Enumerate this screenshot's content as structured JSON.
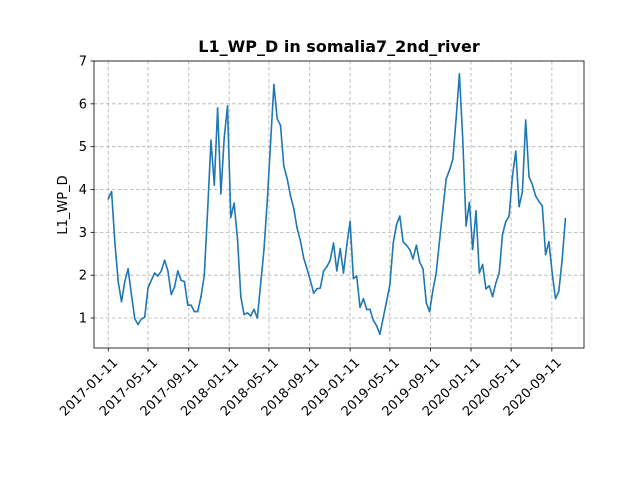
{
  "chart_data": {
    "type": "line",
    "title": "L1_WP_D in somalia7_2nd_river",
    "xlabel": "",
    "ylabel": "L1_WP_D",
    "ylim": [
      0.3,
      7.0
    ],
    "yticks": [
      1,
      2,
      3,
      4,
      5,
      6,
      7
    ],
    "xticks": [
      "2017-01-11",
      "2017-05-11",
      "2017-09-11",
      "2018-01-11",
      "2018-05-11",
      "2018-09-11",
      "2019-01-11",
      "2019-05-11",
      "2019-09-11",
      "2020-01-11",
      "2020-05-11",
      "2020-09-11"
    ],
    "xlim": [
      "2016-11-29",
      "2020-12-17"
    ],
    "grid": true,
    "color": "#1f77b4",
    "series": [
      {
        "x": [
          "2017-01-11",
          "2017-01-21",
          "2017-01-31",
          "2017-02-10",
          "2017-02-20",
          "2017-03-02",
          "2017-03-12",
          "2017-03-22",
          "2017-04-01",
          "2017-04-11",
          "2017-04-21",
          "2017-05-01",
          "2017-05-11",
          "2017-05-21",
          "2017-05-31",
          "2017-06-10",
          "2017-06-20",
          "2017-06-30",
          "2017-07-10",
          "2017-07-20",
          "2017-07-30",
          "2017-08-09",
          "2017-08-19",
          "2017-08-29",
          "2017-09-08",
          "2017-09-18",
          "2017-09-28",
          "2017-10-08",
          "2017-10-18",
          "2017-10-28",
          "2017-11-07",
          "2017-11-17",
          "2017-11-27",
          "2017-12-07",
          "2017-12-17",
          "2017-12-27",
          "2018-01-06",
          "2018-01-16",
          "2018-01-26",
          "2018-02-05",
          "2018-02-15",
          "2018-02-25",
          "2018-03-07",
          "2018-03-17",
          "2018-03-27",
          "2018-04-06",
          "2018-04-16",
          "2018-04-26",
          "2018-05-06",
          "2018-05-16",
          "2018-05-26",
          "2018-06-05",
          "2018-06-15",
          "2018-06-25",
          "2018-07-05",
          "2018-07-15",
          "2018-07-25",
          "2018-08-04",
          "2018-08-14",
          "2018-08-24",
          "2018-09-03",
          "2018-09-13",
          "2018-09-23",
          "2018-10-03",
          "2018-10-13",
          "2018-10-23",
          "2018-11-02",
          "2018-11-12",
          "2018-11-22",
          "2018-12-02",
          "2018-12-12",
          "2018-12-22",
          "2019-01-01",
          "2019-01-11",
          "2019-01-21",
          "2019-01-31",
          "2019-02-10",
          "2019-02-20",
          "2019-03-02",
          "2019-03-12",
          "2019-03-22",
          "2019-04-01",
          "2019-04-11",
          "2019-04-21",
          "2019-05-01",
          "2019-05-11",
          "2019-05-21",
          "2019-05-31",
          "2019-06-10",
          "2019-06-20",
          "2019-06-30",
          "2019-07-10",
          "2019-07-20",
          "2019-07-30",
          "2019-08-09",
          "2019-08-19",
          "2019-08-29",
          "2019-09-08",
          "2019-09-18",
          "2019-09-28",
          "2019-10-08",
          "2019-10-18",
          "2019-10-28",
          "2019-11-07",
          "2019-11-17",
          "2019-11-27",
          "2019-12-07",
          "2019-12-17",
          "2019-12-27",
          "2020-01-06",
          "2020-01-16",
          "2020-01-26",
          "2020-02-05",
          "2020-02-15",
          "2020-02-25",
          "2020-03-06",
          "2020-03-16",
          "2020-03-26",
          "2020-04-05",
          "2020-04-15",
          "2020-04-25",
          "2020-05-05",
          "2020-05-15",
          "2020-05-25",
          "2020-06-04",
          "2020-06-14",
          "2020-06-24",
          "2020-07-04",
          "2020-07-14",
          "2020-07-24",
          "2020-08-03",
          "2020-08-13",
          "2020-08-23",
          "2020-09-02",
          "2020-09-12",
          "2020-09-22",
          "2020-10-02",
          "2020-10-12",
          "2020-10-22"
        ],
        "values": [
          3.78,
          3.95,
          2.75,
          1.85,
          1.38,
          1.85,
          2.15,
          1.55,
          0.98,
          0.85,
          0.98,
          1.02,
          1.7,
          1.88,
          2.05,
          1.98,
          2.1,
          2.35,
          2.1,
          1.55,
          1.72,
          2.1,
          1.88,
          1.85,
          1.3,
          1.3,
          1.15,
          1.15,
          1.5,
          2.0,
          3.5,
          5.15,
          4.1,
          5.9,
          3.9,
          5.2,
          5.95,
          3.35,
          3.68,
          2.85,
          1.5,
          1.08,
          1.12,
          1.05,
          1.2,
          1.0,
          1.78,
          2.6,
          3.75,
          5.1,
          6.45,
          5.65,
          5.5,
          4.55,
          4.25,
          3.85,
          3.55,
          3.1,
          2.8,
          2.4,
          2.15,
          1.88,
          1.58,
          1.68,
          1.7,
          2.1,
          2.2,
          2.35,
          2.75,
          2.1,
          2.62,
          2.05,
          2.7,
          3.25,
          1.92,
          1.98,
          1.25,
          1.45,
          1.2,
          1.2,
          0.95,
          0.82,
          0.62,
          1.0,
          1.38,
          1.78,
          2.75,
          3.18,
          3.38,
          2.78,
          2.7,
          2.6,
          2.38,
          2.7,
          2.3,
          2.15,
          1.35,
          1.15,
          1.65,
          2.05,
          2.82,
          3.55,
          4.25,
          4.45,
          4.7,
          5.65,
          6.7,
          5.2,
          3.15,
          3.7,
          2.6,
          3.5,
          2.05,
          2.25,
          1.68,
          1.75,
          1.5,
          1.82,
          2.05,
          2.95,
          3.25,
          3.38,
          4.3,
          4.9,
          3.6,
          3.95,
          5.62,
          4.3,
          4.12,
          3.85,
          3.72,
          3.62,
          2.48,
          2.78,
          2.05,
          1.45,
          1.62,
          2.35,
          3.32
        ]
      }
    ]
  }
}
